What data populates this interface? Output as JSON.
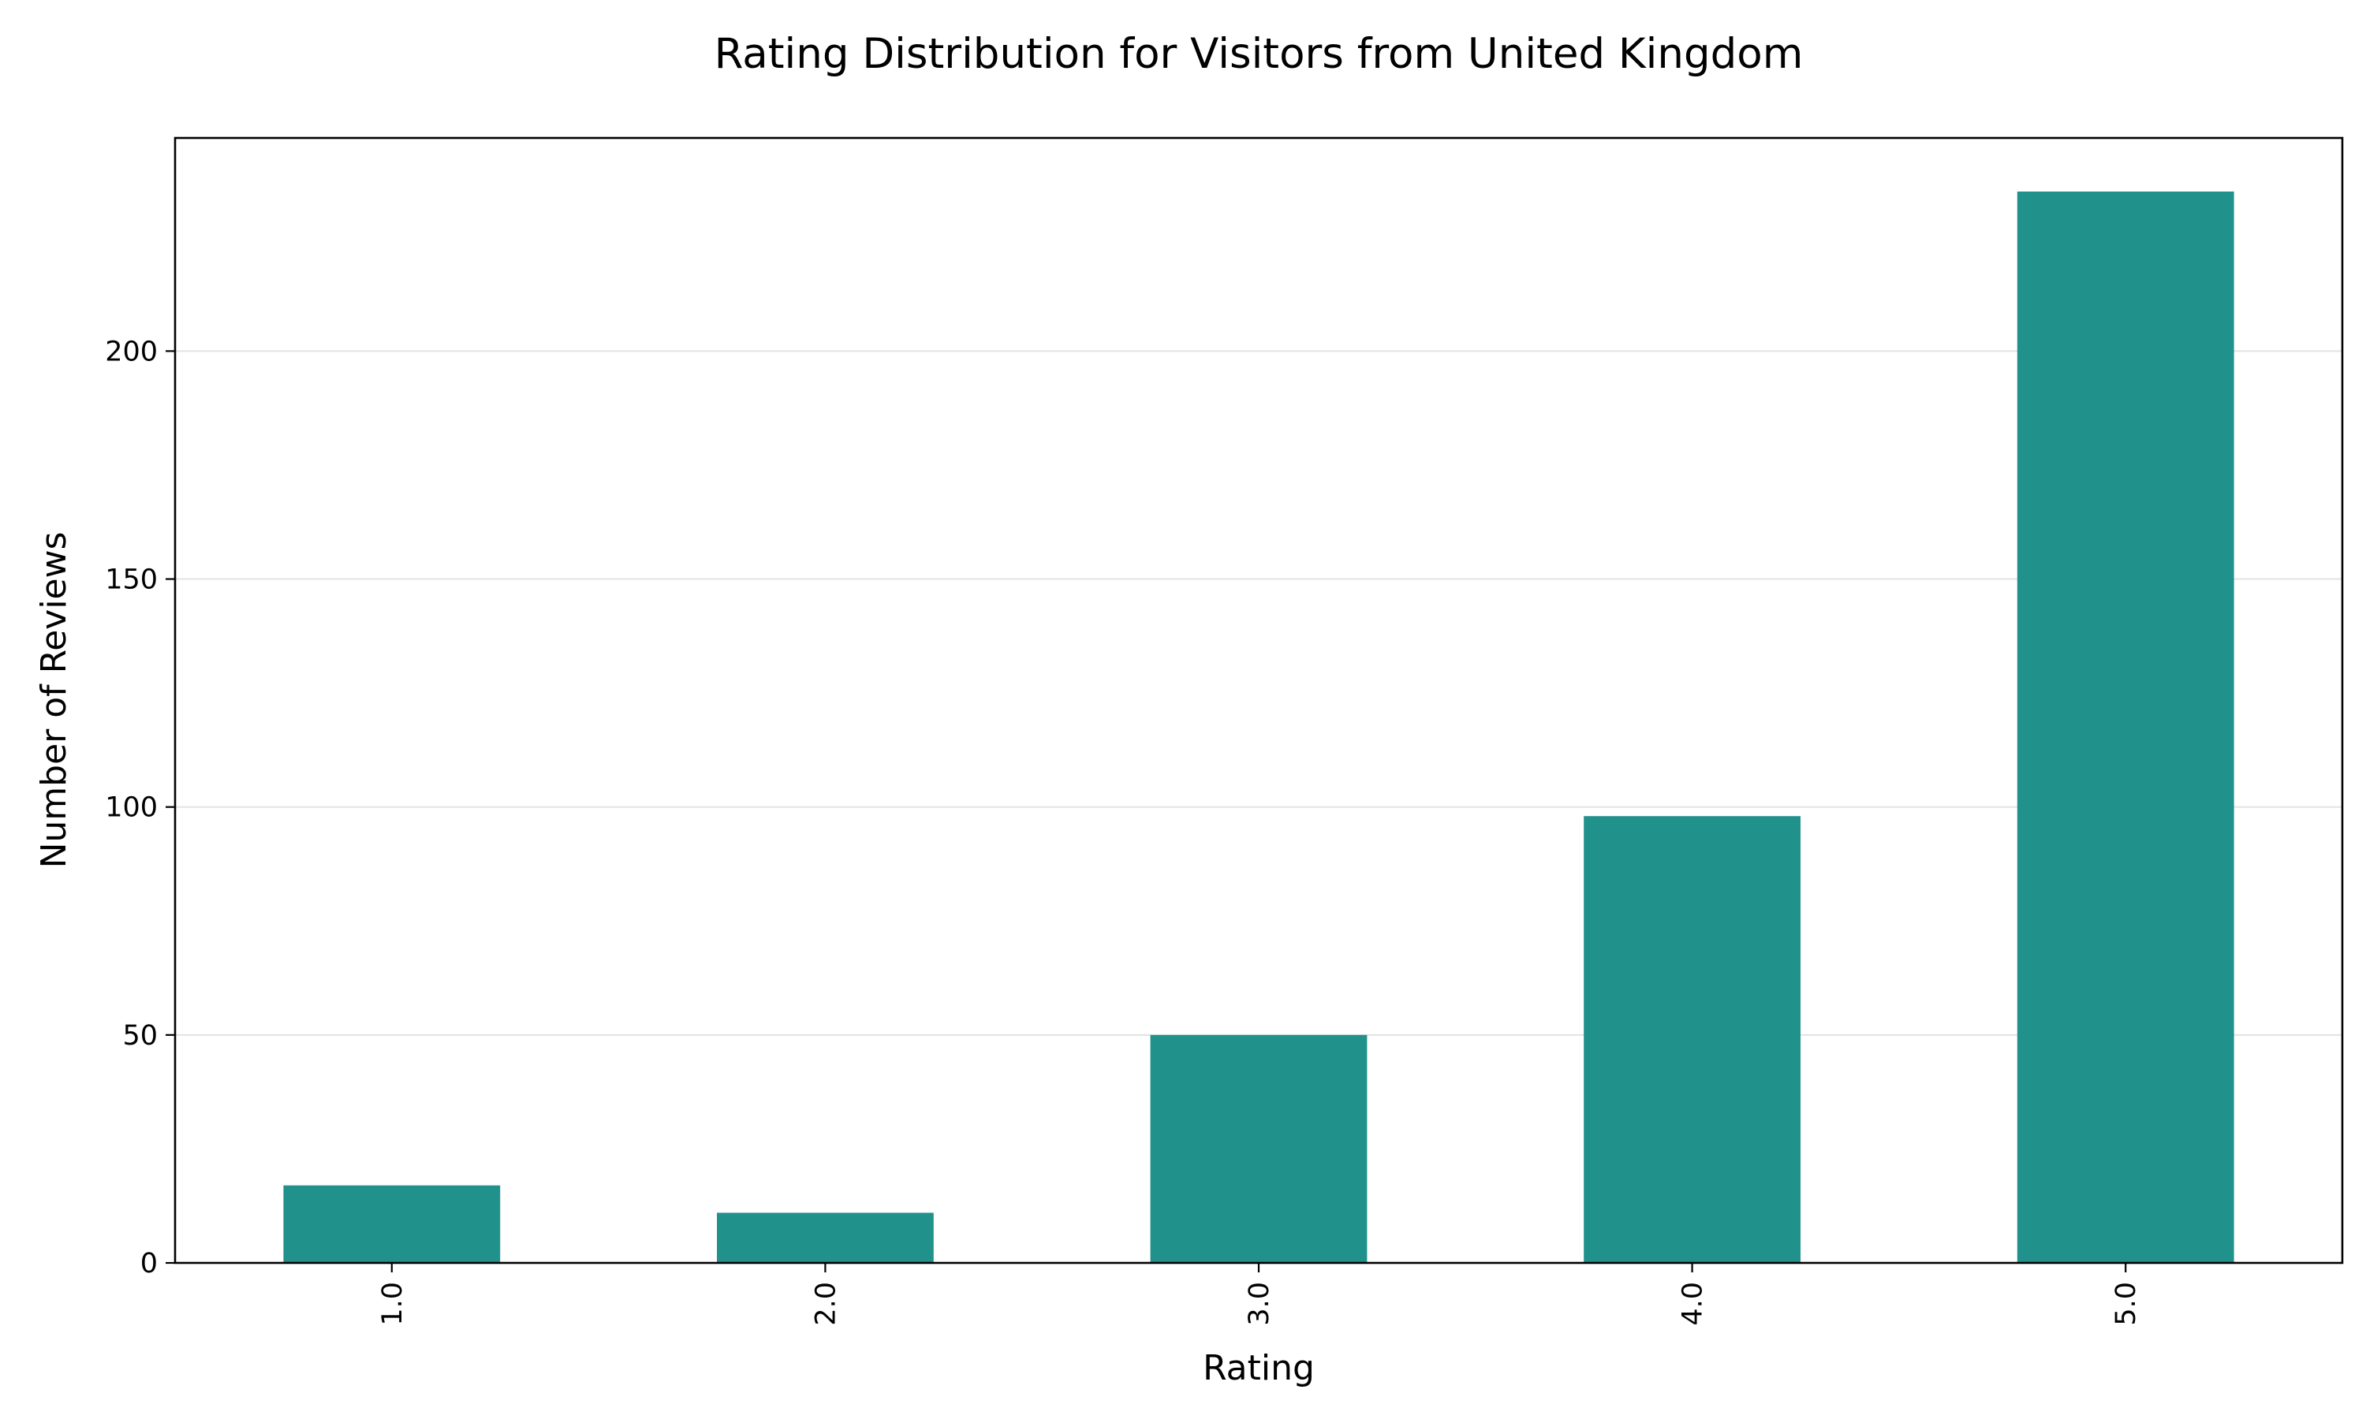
{
  "chart_data": {
    "type": "bar",
    "title": "Rating Distribution for Visitors from United Kingdom",
    "xlabel": "Rating",
    "ylabel": "Number of Reviews",
    "categories": [
      "1.0",
      "2.0",
      "3.0",
      "4.0",
      "5.0"
    ],
    "values": [
      17,
      11,
      50,
      98,
      235
    ],
    "ylim": [
      0,
      246.75
    ],
    "yticks": [
      0,
      50,
      100,
      150,
      200
    ],
    "ytick_labels": [
      "0",
      "50",
      "100",
      "150",
      "200"
    ],
    "grid": "horizontal",
    "legend": "none",
    "bar_color": "#21918c",
    "gridline_color": "#e5e5e5",
    "axis_color": "#000000"
  }
}
